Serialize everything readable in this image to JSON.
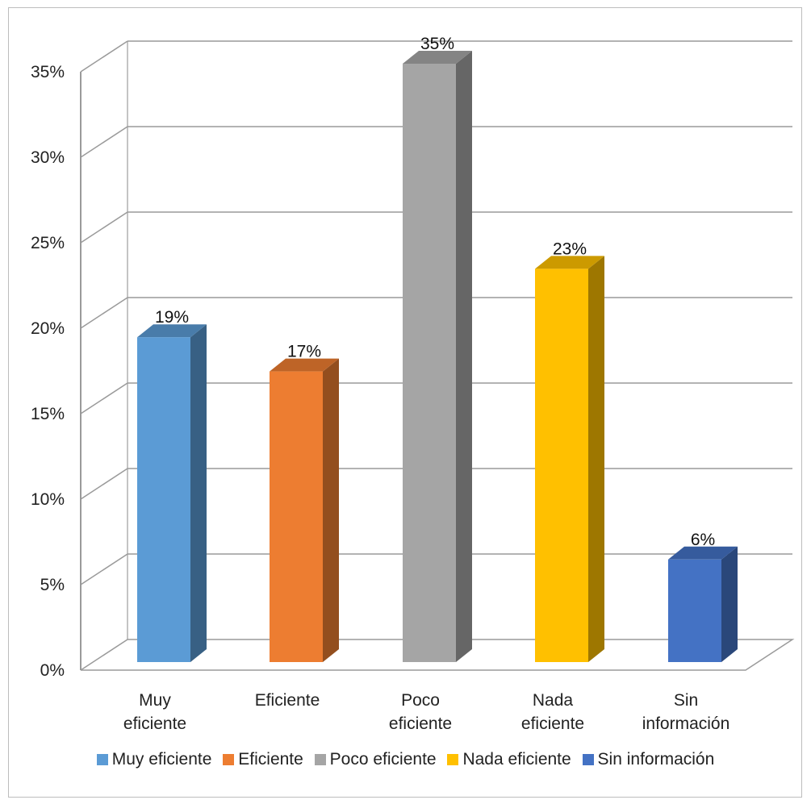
{
  "chart_data": {
    "type": "bar",
    "categories": [
      "Muy eficiente",
      "Eficiente",
      "Poco eficiente",
      "Nada eficiente",
      "Sin información"
    ],
    "category_label_lines": [
      [
        "Muy",
        "eficiente"
      ],
      [
        "Eficiente"
      ],
      [
        "Poco",
        "eficiente"
      ],
      [
        "Nada",
        "eficiente"
      ],
      [
        "Sin",
        "información"
      ]
    ],
    "values": [
      19,
      17,
      35,
      23,
      6
    ],
    "data_labels": [
      "19%",
      "17%",
      "35%",
      "23%",
      "6%"
    ],
    "colors": [
      "#5B9BD5",
      "#ED7D31",
      "#A5A5A5",
      "#FFC000",
      "#4472C4"
    ],
    "y_ticks": [
      "0%",
      "5%",
      "10%",
      "15%",
      "20%",
      "25%",
      "30%",
      "35%"
    ],
    "ylim": [
      0,
      35
    ],
    "grid": true,
    "style": "3d-column",
    "legend_position": "bottom"
  },
  "legend": {
    "items": [
      {
        "label": "Muy eficiente",
        "color": "#5B9BD5"
      },
      {
        "label": "Eficiente",
        "color": "#ED7D31"
      },
      {
        "label": "Poco eficiente",
        "color": "#A5A5A5"
      },
      {
        "label": "Nada eficiente",
        "color": "#FFC000"
      },
      {
        "label": "Sin información",
        "color": "#4472C4"
      }
    ]
  }
}
